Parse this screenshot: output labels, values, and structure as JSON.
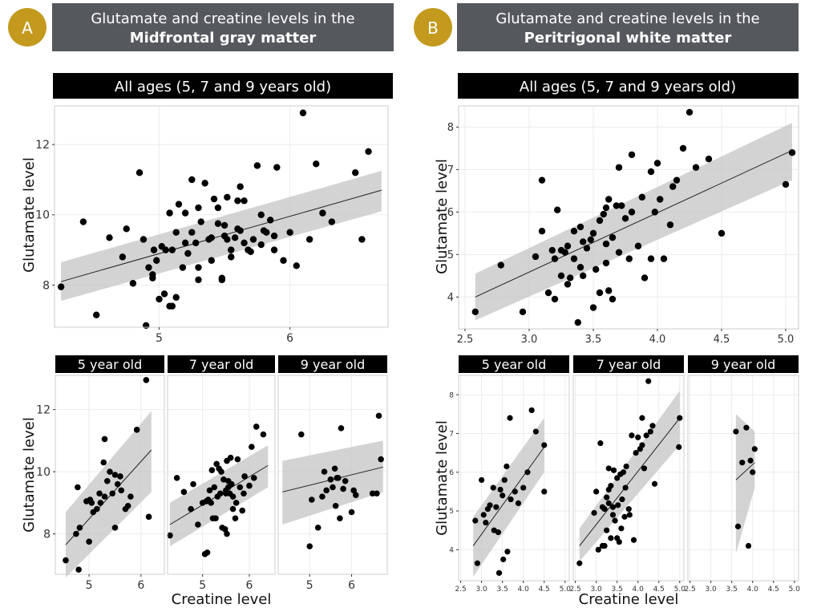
{
  "panels": {
    "A": {
      "letter": "A",
      "title_line1": "Glutamate and creatine levels in the",
      "title_line2": "Midfrontal gray matter"
    },
    "B": {
      "letter": "B",
      "title_line1": "Glutamate and creatine levels in the",
      "title_line2": "Peritrigonal white matter"
    }
  },
  "colors": {
    "badge": "#c39a1e",
    "title_bg": "#55595e",
    "strip_bg": "#000000",
    "band": "#c4c4c4"
  },
  "chart_data": [
    {
      "id": "A_all",
      "type": "scatter",
      "title": "All ages (5, 7 and 9 years old)",
      "xlabel": "",
      "ylabel": "Glutamate level",
      "xlim": [
        4.2,
        6.75
      ],
      "ylim": [
        6.8,
        13.1
      ],
      "xticks": [
        5,
        6
      ],
      "yticks": [
        8,
        10,
        12
      ],
      "fit": {
        "x": [
          4.25,
          6.7
        ],
        "y": [
          8.1,
          10.7
        ],
        "band_lo": [
          7.55,
          10.1
        ],
        "band_hi": [
          8.65,
          11.25
        ]
      },
      "x": [
        4.25,
        4.42,
        4.52,
        4.62,
        4.72,
        4.75,
        4.8,
        4.85,
        4.88,
        4.9,
        4.92,
        4.95,
        4.95,
        4.96,
        4.98,
        5.0,
        5.02,
        5.04,
        5.05,
        5.08,
        5.08,
        5.1,
        5.1,
        5.13,
        5.13,
        5.15,
        5.18,
        5.2,
        5.2,
        5.22,
        5.25,
        5.25,
        5.28,
        5.3,
        5.3,
        5.3,
        5.32,
        5.35,
        5.38,
        5.4,
        5.4,
        5.42,
        5.45,
        5.45,
        5.48,
        5.48,
        5.5,
        5.5,
        5.52,
        5.52,
        5.55,
        5.55,
        5.58,
        5.6,
        5.6,
        5.62,
        5.62,
        5.65,
        5.65,
        5.68,
        5.7,
        5.72,
        5.75,
        5.78,
        5.78,
        5.8,
        5.82,
        5.85,
        5.88,
        5.88,
        5.9,
        5.95,
        6.0,
        6.05,
        6.1,
        6.15,
        6.2,
        6.25,
        6.32,
        6.5,
        6.55,
        6.6
      ],
      "y": [
        7.95,
        9.8,
        7.15,
        9.35,
        8.8,
        9.6,
        8.05,
        11.2,
        9.3,
        6.85,
        8.5,
        8.3,
        8.2,
        9.0,
        8.7,
        7.6,
        9.1,
        7.75,
        9.0,
        7.4,
        10.05,
        7.4,
        9.0,
        9.5,
        7.65,
        10.3,
        8.5,
        9.2,
        10.05,
        8.9,
        9.5,
        11.0,
        9.2,
        10.2,
        8.5,
        8.15,
        9.8,
        10.9,
        9.3,
        9.35,
        8.7,
        10.45,
        10.2,
        9.75,
        8.2,
        8.15,
        9.4,
        9.7,
        10.5,
        9.3,
        9.0,
        8.8,
        9.35,
        9.6,
        10.4,
        10.8,
        9.55,
        9.2,
        10.4,
        9.0,
        8.95,
        9.3,
        11.4,
        9.15,
        10.0,
        9.55,
        9.5,
        9.85,
        9.0,
        9.4,
        11.35,
        8.7,
        9.5,
        8.55,
        12.9,
        9.3,
        11.45,
        10.05,
        9.8,
        11.2,
        9.3,
        11.8
      ]
    },
    {
      "id": "B_all",
      "type": "scatter",
      "title": "All ages (5, 7 and 9 years old)",
      "xlabel": "",
      "ylabel": "Glutamate level",
      "xlim": [
        2.45,
        5.1
      ],
      "ylim": [
        3.25,
        8.5
      ],
      "xticks": [
        2.5,
        3.0,
        3.5,
        4.0,
        4.5,
        5.0
      ],
      "xticklabels": [
        "2.5",
        "3.0",
        "3.5",
        "4.0",
        "4.5",
        "5.0"
      ],
      "yticks": [
        4,
        5,
        6,
        7,
        8
      ],
      "fit": {
        "x": [
          2.58,
          5.05
        ],
        "y": [
          4.0,
          7.45
        ],
        "band_lo": [
          3.45,
          6.75
        ],
        "band_hi": [
          4.55,
          8.1
        ]
      },
      "x": [
        2.58,
        2.78,
        2.95,
        3.05,
        3.1,
        3.1,
        3.15,
        3.18,
        3.2,
        3.2,
        3.22,
        3.25,
        3.25,
        3.28,
        3.3,
        3.3,
        3.32,
        3.35,
        3.35,
        3.38,
        3.4,
        3.4,
        3.42,
        3.42,
        3.45,
        3.48,
        3.5,
        3.5,
        3.52,
        3.55,
        3.55,
        3.58,
        3.6,
        3.6,
        3.6,
        3.62,
        3.62,
        3.65,
        3.65,
        3.68,
        3.7,
        3.7,
        3.72,
        3.75,
        3.78,
        3.8,
        3.8,
        3.85,
        3.88,
        3.9,
        3.95,
        3.95,
        3.98,
        4.0,
        4.02,
        4.05,
        4.1,
        4.12,
        4.15,
        4.2,
        4.25,
        4.3,
        4.4,
        4.5,
        5.0,
        5.05
      ],
      "y": [
        3.65,
        4.75,
        3.65,
        4.95,
        5.55,
        6.75,
        4.1,
        5.1,
        4.9,
        3.95,
        6.05,
        4.5,
        5.1,
        5.05,
        5.2,
        4.3,
        4.45,
        4.9,
        5.55,
        3.4,
        5.65,
        4.7,
        5.3,
        4.5,
        5.15,
        5.35,
        3.75,
        5.5,
        4.65,
        5.8,
        4.1,
        5.95,
        4.8,
        5.25,
        6.1,
        6.3,
        4.15,
        3.95,
        5.4,
        6.15,
        5.05,
        7.05,
        6.15,
        5.85,
        4.9,
        6.0,
        7.35,
        5.2,
        6.35,
        4.45,
        4.9,
        6.95,
        6.0,
        7.15,
        6.3,
        4.9,
        5.7,
        6.6,
        6.75,
        7.5,
        8.35,
        7.05,
        7.25,
        5.5,
        6.65,
        7.4
      ]
    },
    {
      "id": "A_5",
      "type": "scatter",
      "title": "5 year old",
      "xlabel": "",
      "ylabel": "Glutamate level",
      "xlim": [
        4.35,
        6.45
      ],
      "ylim": [
        6.7,
        13.1
      ],
      "xticks": [
        5,
        6
      ],
      "yticks": [
        8,
        10,
        12
      ],
      "fit": {
        "x": [
          4.55,
          6.2
        ],
        "y": [
          7.65,
          10.7
        ],
        "band_lo": [
          6.6,
          9.35
        ],
        "band_hi": [
          8.7,
          11.95
        ]
      },
      "x": [
        4.55,
        4.75,
        4.78,
        4.8,
        4.82,
        4.95,
        5.0,
        5.02,
        5.05,
        5.08,
        5.15,
        5.2,
        5.22,
        5.28,
        5.3,
        5.3,
        5.35,
        5.4,
        5.45,
        5.5,
        5.5,
        5.55,
        5.6,
        5.62,
        5.7,
        5.75,
        5.8,
        5.92,
        6.1,
        6.15
      ],
      "y": [
        7.15,
        8.0,
        9.5,
        6.85,
        8.2,
        9.05,
        7.75,
        9.1,
        9.0,
        8.7,
        8.8,
        9.3,
        9.0,
        10.3,
        9.2,
        11.05,
        9.7,
        10.0,
        9.3,
        9.9,
        8.2,
        9.6,
        9.85,
        9.4,
        8.8,
        8.9,
        9.2,
        11.35,
        12.95,
        8.55
      ]
    },
    {
      "id": "A_7",
      "type": "scatter",
      "title": "7 year old",
      "xlabel": "",
      "ylabel": "",
      "xlim": [
        4.25,
        6.55
      ],
      "ylim": [
        6.7,
        13.1
      ],
      "xticks": [
        5,
        6
      ],
      "yticks": [
        8,
        10,
        12
      ],
      "fit": {
        "x": [
          4.3,
          6.4
        ],
        "y": [
          8.3,
          10.2
        ],
        "band_lo": [
          7.6,
          9.5
        ],
        "band_hi": [
          9.0,
          10.85
        ]
      },
      "x": [
        4.3,
        4.45,
        4.6,
        4.75,
        4.8,
        4.9,
        5.0,
        5.05,
        5.08,
        5.1,
        5.12,
        5.15,
        5.18,
        5.2,
        5.22,
        5.25,
        5.28,
        5.3,
        5.32,
        5.35,
        5.38,
        5.4,
        5.42,
        5.45,
        5.48,
        5.5,
        5.5,
        5.52,
        5.52,
        5.55,
        5.55,
        5.58,
        5.6,
        5.62,
        5.65,
        5.65,
        5.7,
        5.72,
        5.75,
        5.8,
        5.85,
        5.88,
        5.9,
        6.0,
        6.05,
        6.1,
        6.15,
        6.3
      ],
      "y": [
        7.95,
        9.8,
        9.35,
        8.8,
        9.6,
        8.3,
        9.0,
        7.35,
        9.05,
        7.4,
        9.1,
        9.4,
        9.0,
        10.05,
        8.5,
        9.5,
        8.5,
        10.25,
        9.2,
        10.1,
        9.3,
        10.0,
        8.2,
        9.75,
        8.15,
        9.4,
        9.3,
        8.0,
        10.35,
        9.5,
        9.7,
        9.3,
        10.45,
        9.6,
        9.2,
        8.8,
        8.5,
        9.0,
        10.4,
        9.5,
        8.75,
        9.3,
        9.85,
        9.55,
        10.8,
        9.8,
        11.45,
        11.2
      ]
    },
    {
      "id": "A_9",
      "type": "scatter",
      "title": "9 year old",
      "xlabel": "",
      "ylabel": "",
      "xlim": [
        4.25,
        6.85
      ],
      "ylim": [
        6.7,
        13.1
      ],
      "xticks": [
        5,
        6
      ],
      "yticks": [
        8,
        10,
        12
      ],
      "fit": {
        "x": [
          4.35,
          6.75
        ],
        "y": [
          9.35,
          10.15
        ],
        "band_lo": [
          8.3,
          9.35
        ],
        "band_hi": [
          10.35,
          11.0
        ]
      },
      "x": [
        4.8,
        5.0,
        5.05,
        5.2,
        5.3,
        5.35,
        5.4,
        5.5,
        5.55,
        5.6,
        5.62,
        5.65,
        5.68,
        5.72,
        5.75,
        5.8,
        5.85,
        6.0,
        6.05,
        6.1,
        6.5,
        6.6,
        6.65,
        6.7
      ],
      "y": [
        11.2,
        7.6,
        9.1,
        8.2,
        9.2,
        10.0,
        9.4,
        9.75,
        9.5,
        10.1,
        8.9,
        9.8,
        9.8,
        8.5,
        11.4,
        9.45,
        9.7,
        8.7,
        9.4,
        9.25,
        9.3,
        9.3,
        11.8,
        10.4
      ]
    },
    {
      "id": "B_5",
      "type": "scatter",
      "title": "5 year old",
      "xlabel": "",
      "ylabel": "Glutamate level",
      "xlim": [
        2.45,
        5.1
      ],
      "ylim": [
        3.2,
        8.5
      ],
      "xticks": [
        2.5,
        3.0,
        3.5,
        4.0,
        4.5,
        5.0
      ],
      "xticklabels": [
        "2.5",
        "3.0",
        "3.5",
        "4.0",
        "4.5",
        "5.0"
      ],
      "yticks": [
        4,
        5,
        6,
        7,
        8
      ],
      "fit": {
        "x": [
          2.8,
          4.5
        ],
        "y": [
          4.1,
          6.65
        ],
        "band_lo": [
          3.3,
          6.0
        ],
        "band_hi": [
          4.85,
          7.4
        ]
      },
      "x": [
        2.85,
        2.9,
        3.0,
        3.05,
        3.1,
        3.15,
        3.2,
        3.28,
        3.3,
        3.35,
        3.4,
        3.42,
        3.45,
        3.5,
        3.52,
        3.55,
        3.6,
        3.62,
        3.68,
        3.7,
        3.8,
        3.88,
        4.0,
        4.1,
        4.2,
        4.3,
        4.5,
        4.5
      ],
      "y": [
        4.75,
        3.65,
        5.8,
        4.9,
        4.7,
        5.05,
        5.15,
        5.6,
        4.5,
        5.1,
        4.45,
        3.4,
        5.55,
        5.4,
        3.75,
        5.8,
        6.15,
        3.95,
        7.4,
        5.3,
        5.5,
        5.2,
        5.6,
        6.0,
        7.6,
        7.05,
        6.7,
        5.5
      ]
    },
    {
      "id": "B_7",
      "type": "scatter",
      "title": "7 year old",
      "xlabel": "Creatine level",
      "ylabel": "",
      "xlim": [
        2.45,
        5.1
      ],
      "ylim": [
        3.2,
        8.5
      ],
      "xticks": [
        2.5,
        3.0,
        3.5,
        4.0,
        4.5,
        5.0
      ],
      "xticklabels": [
        "2.5",
        "3.0",
        "3.5",
        "4.0",
        "4.5",
        "5.0"
      ],
      "yticks": [
        4,
        5,
        6,
        7,
        8
      ],
      "fit": {
        "x": [
          2.6,
          5.0
        ],
        "y": [
          4.1,
          7.4
        ],
        "band_lo": [
          3.7,
          6.7
        ],
        "band_hi": [
          4.55,
          8.1
        ]
      },
      "x": [
        2.6,
        2.95,
        3.0,
        3.05,
        3.1,
        3.15,
        3.15,
        3.2,
        3.2,
        3.25,
        3.25,
        3.3,
        3.3,
        3.3,
        3.35,
        3.35,
        3.4,
        3.4,
        3.42,
        3.45,
        3.5,
        3.5,
        3.52,
        3.55,
        3.58,
        3.6,
        3.62,
        3.65,
        3.68,
        3.7,
        3.72,
        3.78,
        3.8,
        3.85,
        3.9,
        3.95,
        4.0,
        4.05,
        4.1,
        4.1,
        4.15,
        4.2,
        4.25,
        4.3,
        4.35,
        4.4,
        4.98,
        5.0
      ],
      "y": [
        3.65,
        4.95,
        5.5,
        4.0,
        6.75,
        4.1,
        5.1,
        4.1,
        5.05,
        5.35,
        4.5,
        5.2,
        5.55,
        6.1,
        4.3,
        5.65,
        5.1,
        4.9,
        6.05,
        4.75,
        4.3,
        5.85,
        5.15,
        4.2,
        5.95,
        4.55,
        5.3,
        6.0,
        4.85,
        5.6,
        6.15,
        5.05,
        4.9,
        6.95,
        4.25,
        6.5,
        6.9,
        6.6,
        6.7,
        7.4,
        6.1,
        6.95,
        8.35,
        7.05,
        7.2,
        5.7,
        6.65,
        7.4
      ]
    },
    {
      "id": "B_9",
      "type": "scatter",
      "title": "9 year old",
      "xlabel": "",
      "ylabel": "",
      "xlim": [
        2.45,
        5.1
      ],
      "ylim": [
        3.2,
        8.5
      ],
      "xticks": [
        2.5,
        3.0,
        3.5,
        4.0,
        4.5,
        5.0
      ],
      "xticklabels": [
        "2.5",
        "3.0",
        "3.5",
        "4.0",
        "4.5",
        "5.0"
      ],
      "yticks": [
        4,
        5,
        6,
        7,
        8
      ],
      "fit": {
        "x": [
          3.6,
          4.05
        ],
        "y": [
          5.8,
          6.25
        ],
        "band_lo": [
          3.9,
          5.6
        ],
        "band_hi": [
          7.5,
          7.05
        ]
      },
      "x": [
        3.6,
        3.65,
        3.75,
        3.85,
        3.9,
        3.95,
        4.0,
        4.05
      ],
      "y": [
        7.05,
        4.6,
        6.25,
        7.15,
        4.1,
        6.3,
        6.0,
        6.6
      ]
    }
  ],
  "shared": {
    "x_axis_title": "Creatine level"
  }
}
